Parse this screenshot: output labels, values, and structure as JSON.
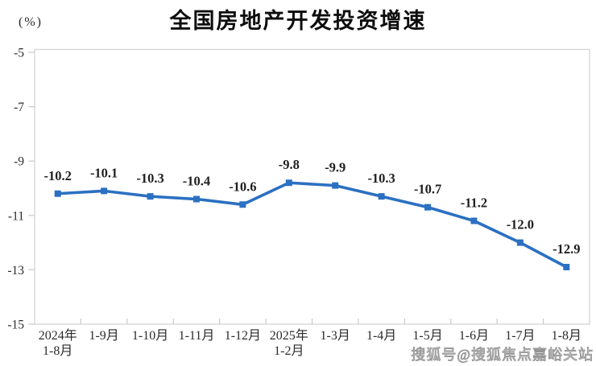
{
  "page": {
    "background": "#ffffff"
  },
  "chart_data": {
    "type": "line",
    "title": "全国房地产开发投资增速",
    "unit_label": "(%)",
    "categories": [
      [
        "2024年",
        "1-8月"
      ],
      [
        "1-9月"
      ],
      [
        "1-10月"
      ],
      [
        "1-11月"
      ],
      [
        "1-12月"
      ],
      [
        "2025年",
        "1-2月"
      ],
      [
        "1-3月"
      ],
      [
        "1-4月"
      ],
      [
        "1-5月"
      ],
      [
        "1-6月"
      ],
      [
        "1-7月"
      ],
      [
        "1-8月"
      ]
    ],
    "values": [
      -10.2,
      -10.1,
      -10.3,
      -10.4,
      -10.6,
      -9.8,
      -9.9,
      -10.3,
      -10.7,
      -11.2,
      -12.0,
      -12.9
    ],
    "data_labels": [
      "-10.2",
      "-10.1",
      "-10.3",
      "-10.4",
      "-10.6",
      "-9.8",
      "-9.9",
      "-10.3",
      "-10.7",
      "-11.2",
      "-12.0",
      "-12.9"
    ],
    "y_ticks": [
      -5,
      -7,
      -9,
      -11,
      -13,
      -15
    ],
    "ylim": [
      -15,
      -5
    ],
    "grid": false,
    "legend": "none",
    "marker": "square",
    "line_color": "#2b70c2",
    "axis_color": "#d7d7d7",
    "tick_color": "#c9c9c9",
    "axis_text_color": "#2b2b2b",
    "label_color": "#1f1f1f"
  },
  "watermark": "搜狐号@搜狐焦点嘉峪关站"
}
